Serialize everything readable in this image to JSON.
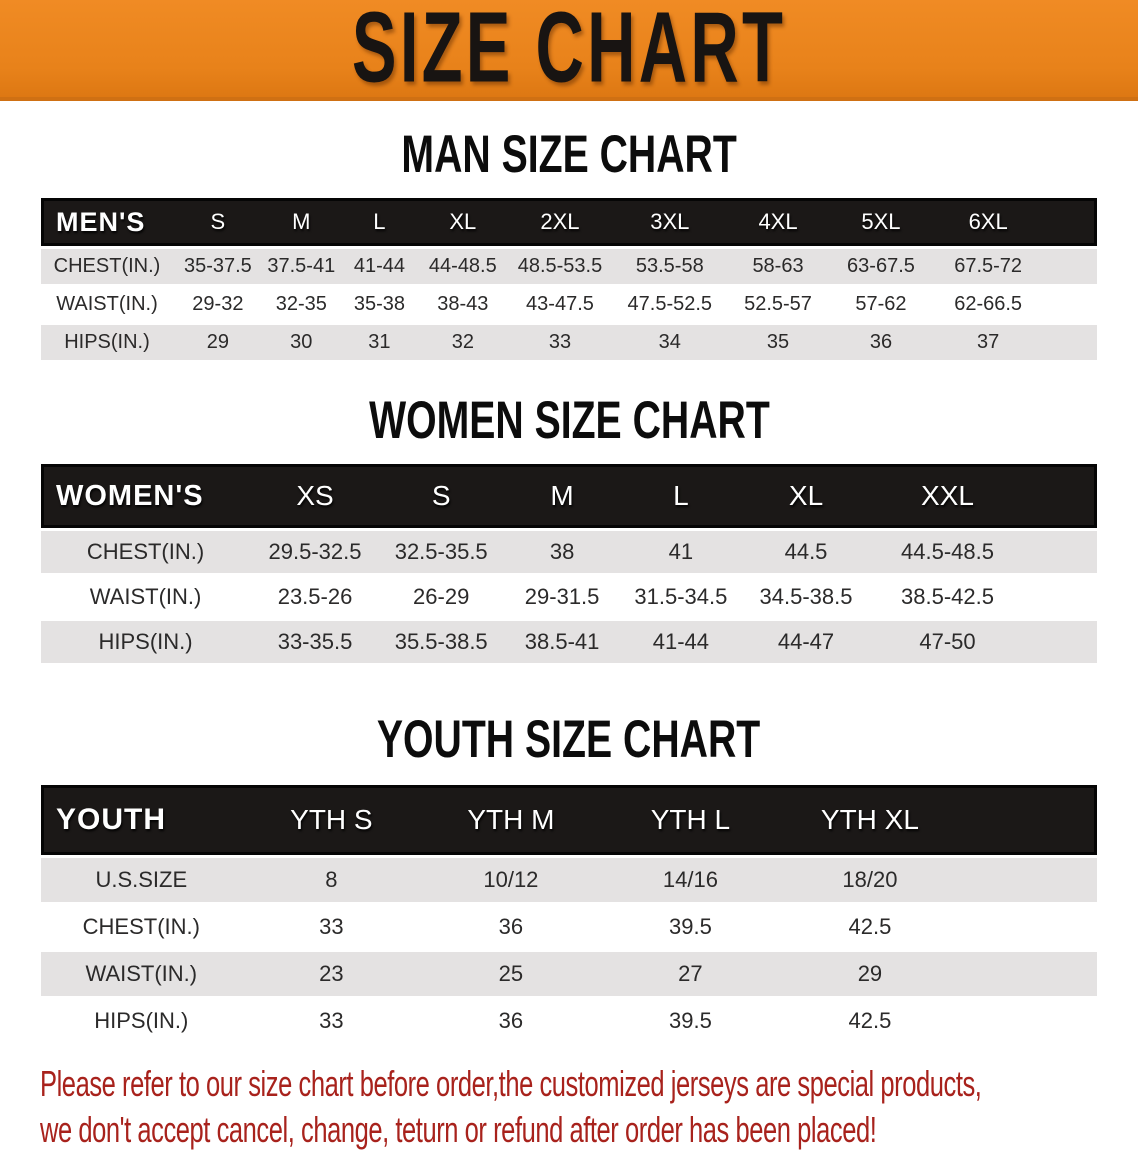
{
  "banner": {
    "title": "SIZE CHART",
    "background_color": "#e8821a",
    "text_color": "#181412"
  },
  "sections": [
    {
      "heading": "MAN SIZE CHART",
      "table": {
        "label": "MEN'S",
        "columns": [
          "S",
          "M",
          "L",
          "XL",
          "2XL",
          "3XL",
          "4XL",
          "5XL",
          "6XL"
        ],
        "rows": [
          {
            "label": "CHEST(IN.)",
            "values": [
              "35-37.5",
              "37.5-41",
              "41-44",
              "44-48.5",
              "48.5-53.5",
              "53.5-58",
              "58-63",
              "63-67.5",
              "67.5-72"
            ]
          },
          {
            "label": "WAIST(IN.)",
            "values": [
              "29-32",
              "32-35",
              "35-38",
              "38-43",
              "43-47.5",
              "47.5-52.5",
              "52.5-57",
              "57-62",
              "62-66.5"
            ]
          },
          {
            "label": "HIPS(IN.)",
            "values": [
              "29",
              "30",
              "31",
              "32",
              "33",
              "34",
              "35",
              "36",
              "37"
            ]
          }
        ]
      }
    },
    {
      "heading": "WOMEN SIZE CHART",
      "table": {
        "label": "WOMEN'S",
        "columns": [
          "XS",
          "S",
          "M",
          "L",
          "XL",
          "XXL"
        ],
        "rows": [
          {
            "label": "CHEST(IN.)",
            "values": [
              "29.5-32.5",
              "32.5-35.5",
              "38",
              "41",
              "44.5",
              "44.5-48.5"
            ]
          },
          {
            "label": "WAIST(IN.)",
            "values": [
              "23.5-26",
              "26-29",
              "29-31.5",
              "31.5-34.5",
              "34.5-38.5",
              "38.5-42.5"
            ]
          },
          {
            "label": "HIPS(IN.)",
            "values": [
              "33-35.5",
              "35.5-38.5",
              "38.5-41",
              "41-44",
              "44-47",
              "47-50"
            ]
          }
        ]
      }
    },
    {
      "heading": "YOUTH SIZE CHART",
      "table": {
        "label": "YOUTH",
        "columns": [
          "YTH S",
          "YTH M",
          "YTH L",
          "YTH XL"
        ],
        "rows": [
          {
            "label": "U.S.SIZE",
            "values": [
              "8",
              "10/12",
              "14/16",
              "18/20"
            ]
          },
          {
            "label": "CHEST(IN.)",
            "values": [
              "33",
              "36",
              "39.5",
              "42.5"
            ]
          },
          {
            "label": "WAIST(IN.)",
            "values": [
              "23",
              "25",
              "27",
              "29"
            ]
          },
          {
            "label": "HIPS(IN.)",
            "values": [
              "33",
              "36",
              "39.5",
              "42.5"
            ]
          }
        ]
      }
    }
  ],
  "disclaimer": {
    "text_color": "#a8221c",
    "lines": [
      "Please refer to our size chart before order,the customized jerseys are special products,",
      "we don't accept cancel, change, teturn or refund after order has been placed!"
    ]
  }
}
